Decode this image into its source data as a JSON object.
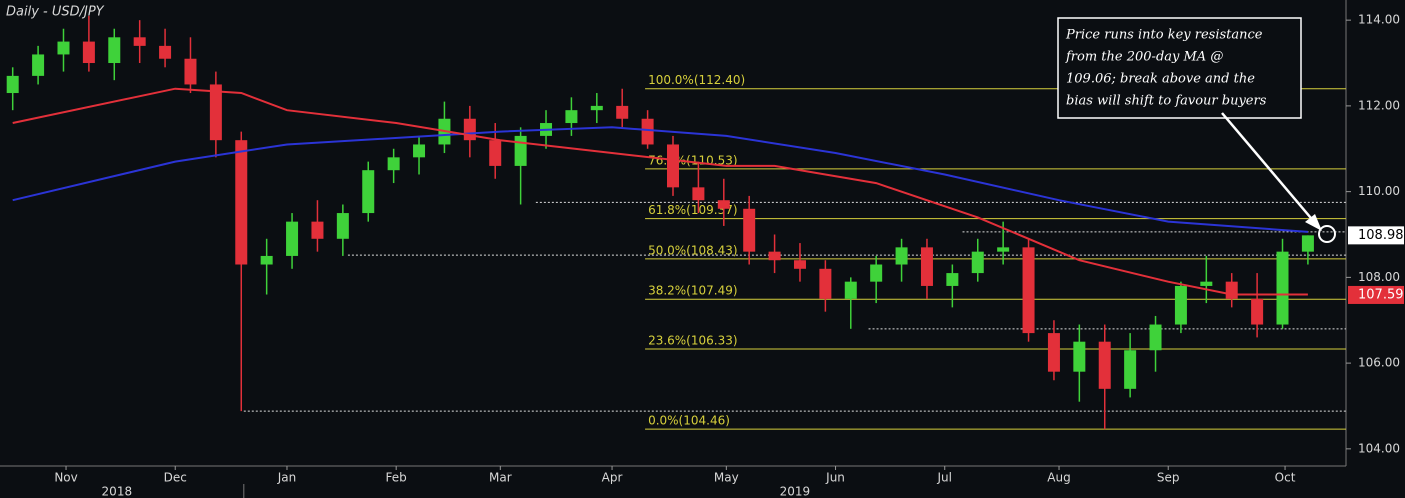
{
  "chart_data": {
    "type": "candlestick",
    "title": "Daily - USD/JPY",
    "up_color": "#3fd23a",
    "down_color": "#e3303a",
    "xlim": [
      -0.5,
      52.5
    ],
    "xticks": [
      {
        "value": 2.1,
        "label": "Nov"
      },
      {
        "value": 6.4,
        "label": "Dec"
      },
      {
        "value": 10.8,
        "label": "Jan"
      },
      {
        "value": 15.1,
        "label": "Feb"
      },
      {
        "value": 19.2,
        "label": "Mar"
      },
      {
        "value": 23.6,
        "label": "Apr"
      },
      {
        "value": 28.1,
        "label": "May"
      },
      {
        "value": 32.4,
        "label": "Jun"
      },
      {
        "value": 36.7,
        "label": "Jul"
      },
      {
        "value": 41.2,
        "label": "Aug"
      },
      {
        "value": 45.5,
        "label": "Sep"
      },
      {
        "value": 50.1,
        "label": "Oct"
      }
    ],
    "years": [
      {
        "value": 4.1,
        "label": "2018"
      },
      {
        "value": 30.8,
        "label": "2019"
      }
    ],
    "ylim": [
      103.6,
      114.47
    ],
    "yticks": [
      {
        "value": 104,
        "label": "104.00"
      },
      {
        "value": 106,
        "label": "106.00"
      },
      {
        "value": 108,
        "label": "108.00"
      },
      {
        "value": 110,
        "label": "110.00"
      },
      {
        "value": 112,
        "label": "112.00"
      },
      {
        "value": 114,
        "label": "114.00"
      }
    ],
    "candles": [
      [
        112.3,
        112.9,
        111.9,
        112.7
      ],
      [
        112.7,
        113.4,
        112.5,
        113.2
      ],
      [
        113.2,
        113.8,
        112.8,
        113.5
      ],
      [
        113.5,
        114.1,
        112.8,
        113.0
      ],
      [
        113.0,
        113.8,
        112.6,
        113.6
      ],
      [
        113.6,
        114.0,
        113.0,
        113.4
      ],
      [
        113.4,
        113.8,
        112.9,
        113.1
      ],
      [
        113.1,
        113.6,
        112.3,
        112.5
      ],
      [
        112.5,
        112.8,
        110.8,
        111.2
      ],
      [
        111.2,
        111.4,
        104.88,
        108.3
      ],
      [
        108.3,
        108.9,
        107.6,
        108.5
      ],
      [
        108.5,
        109.5,
        108.2,
        109.3
      ],
      [
        109.3,
        109.8,
        108.6,
        108.9
      ],
      [
        108.9,
        109.7,
        108.5,
        109.5
      ],
      [
        109.5,
        110.7,
        109.3,
        110.5
      ],
      [
        110.5,
        111.0,
        110.2,
        110.8
      ],
      [
        110.8,
        111.3,
        110.4,
        111.1
      ],
      [
        111.1,
        112.1,
        110.9,
        111.7
      ],
      [
        111.7,
        112.0,
        110.8,
        111.2
      ],
      [
        111.2,
        111.6,
        110.3,
        110.6
      ],
      [
        110.6,
        111.5,
        109.7,
        111.3
      ],
      [
        111.3,
        111.9,
        111.0,
        111.6
      ],
      [
        111.6,
        112.2,
        111.3,
        111.9
      ],
      [
        111.9,
        112.3,
        111.6,
        112.0
      ],
      [
        112.0,
        112.4,
        111.5,
        111.7
      ],
      [
        111.7,
        111.9,
        111.0,
        111.1
      ],
      [
        111.1,
        111.3,
        109.9,
        110.1
      ],
      [
        110.1,
        110.7,
        109.5,
        109.8
      ],
      [
        109.8,
        110.3,
        109.2,
        109.6
      ],
      [
        109.6,
        109.9,
        108.3,
        108.6
      ],
      [
        108.6,
        109.0,
        108.1,
        108.4
      ],
      [
        108.4,
        108.8,
        107.9,
        108.2
      ],
      [
        108.2,
        108.4,
        107.2,
        107.5
      ],
      [
        107.5,
        108.0,
        106.8,
        107.9
      ],
      [
        107.9,
        108.5,
        107.4,
        108.3
      ],
      [
        108.3,
        108.9,
        107.9,
        108.7
      ],
      [
        108.7,
        108.9,
        107.5,
        107.8
      ],
      [
        107.8,
        108.3,
        107.3,
        108.1
      ],
      [
        108.1,
        108.9,
        107.9,
        108.6
      ],
      [
        108.6,
        109.3,
        108.3,
        108.7
      ],
      [
        108.7,
        108.9,
        106.5,
        106.7
      ],
      [
        106.7,
        107.0,
        105.6,
        105.8
      ],
      [
        105.8,
        106.9,
        105.1,
        106.5
      ],
      [
        106.5,
        106.9,
        104.46,
        105.4
      ],
      [
        105.4,
        106.7,
        105.2,
        106.3
      ],
      [
        106.3,
        107.1,
        105.8,
        106.9
      ],
      [
        106.9,
        107.9,
        106.7,
        107.8
      ],
      [
        107.8,
        108.5,
        107.4,
        107.9
      ],
      [
        107.9,
        108.1,
        107.3,
        107.5
      ],
      [
        107.5,
        108.1,
        106.6,
        106.9
      ],
      [
        106.9,
        108.9,
        106.8,
        108.6
      ],
      [
        108.6,
        108.98,
        108.3,
        108.98
      ]
    ],
    "moving_averages": [
      {
        "color": "#2b34d6",
        "x": [
          0,
          6.4,
          10.8,
          19.2,
          23.6,
          28.1,
          32.4,
          36.7,
          41.2,
          45.5,
          50.1,
          51
        ],
        "values": [
          109.8,
          110.7,
          111.1,
          111.4,
          111.5,
          111.3,
          110.9,
          110.4,
          109.8,
          109.3,
          109.1,
          109.06
        ]
      },
      {
        "color": "#e3303a",
        "x": [
          0,
          6.4,
          9,
          10.8,
          15.1,
          19.2,
          23.6,
          28.1,
          30,
          34,
          38,
          42,
          45.5,
          48,
          51
        ],
        "values": [
          111.6,
          112.4,
          112.3,
          111.9,
          111.6,
          111.2,
          110.9,
          110.6,
          110.6,
          110.2,
          109.4,
          108.4,
          107.9,
          107.6,
          107.6
        ]
      }
    ],
    "fib_color": "#d6cf3c",
    "fib_start": 24.9,
    "fib_levels": [
      {
        "value": 112.4,
        "label": "100.0%(112.40)"
      },
      {
        "value": 110.53,
        "label": "76.4%(110.53)"
      },
      {
        "value": 109.37,
        "label": "61.8%(109.37)"
      },
      {
        "value": 108.43,
        "label": "50.0%(108.43)"
      },
      {
        "value": 107.49,
        "label": "38.2%(107.49)"
      },
      {
        "value": 106.33,
        "label": "23.6%(106.33)"
      },
      {
        "value": 104.46,
        "label": "0.0%(104.46)"
      }
    ],
    "reference_lines": [
      {
        "value": 109.75,
        "from": 20.6
      },
      {
        "value": 109.06,
        "from": 37.4
      },
      {
        "value": 108.52,
        "from": 13.2
      },
      {
        "value": 106.8,
        "from": 33.7
      },
      {
        "value": 104.88,
        "from": 9.1
      }
    ],
    "price_tags": [
      {
        "value": 108.98,
        "color": "#ffffff",
        "text_color": "#000000"
      },
      {
        "value": 107.59,
        "color": "#e3303a",
        "text_color": "#ffffff"
      }
    ],
    "annotation": [
      "Price runs into key resistance",
      "from the 200-day MA @",
      "109.06; break above and the",
      "bias will shift to favour buyers"
    ]
  }
}
